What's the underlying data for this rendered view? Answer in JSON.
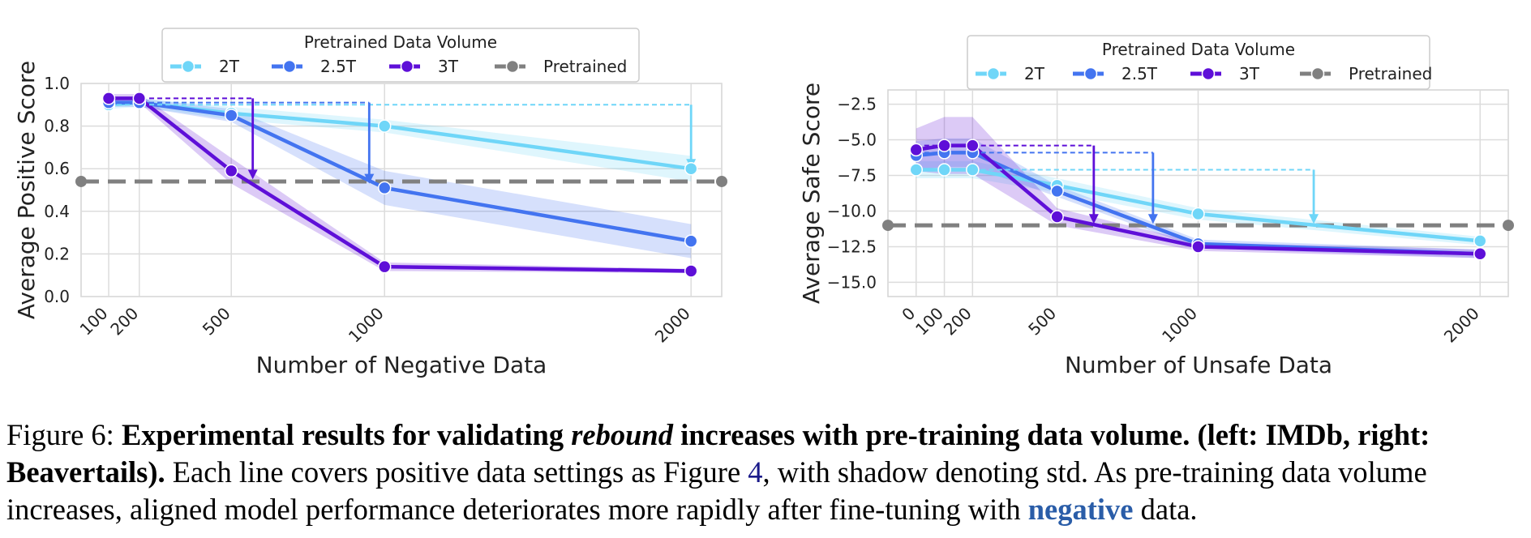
{
  "chart_data": [
    {
      "type": "line",
      "xlabel": "Number of Negative Data",
      "ylabel": "Average Positive Score",
      "x_ticks": [
        100,
        200,
        500,
        1000,
        2000
      ],
      "xlim": [
        10,
        2100
      ],
      "ylim": [
        0.0,
        1.0
      ],
      "y_ticks": [
        "0.0",
        "0.2",
        "0.4",
        "0.6",
        "0.8",
        "1.0"
      ],
      "grid": true,
      "legend": {
        "title": "Pretrained Data Volume",
        "placement": "top-center"
      },
      "series": [
        {
          "name": "2T",
          "color": "#6fd6f8",
          "x": [
            100,
            200,
            500,
            1000,
            2000
          ],
          "y": [
            0.9,
            0.91,
            0.86,
            0.8,
            0.6
          ],
          "std": [
            0.02,
            0.02,
            0.03,
            0.03,
            0.06
          ]
        },
        {
          "name": "2.5T",
          "color": "#4374f0",
          "x": [
            100,
            200,
            500,
            1000,
            2000
          ],
          "y": [
            0.91,
            0.91,
            0.85,
            0.51,
            0.26
          ],
          "std": [
            0.02,
            0.02,
            0.03,
            0.08,
            0.08
          ]
        },
        {
          "name": "3T",
          "color": "#5e0fd8",
          "x": [
            100,
            200,
            500,
            1000,
            2000
          ],
          "y": [
            0.93,
            0.93,
            0.59,
            0.14,
            0.12
          ],
          "std": [
            0.02,
            0.02,
            0.06,
            0.02,
            0.01
          ]
        }
      ],
      "reference": {
        "name": "Pretrained",
        "color": "#808080",
        "y": 0.54
      },
      "annotations": [
        {
          "color": "#6fd6f8",
          "x": 2000,
          "from": 0.9,
          "to": 0.6
        },
        {
          "color": "#4374f0",
          "x": 950,
          "from": 0.91,
          "to": 0.53
        },
        {
          "color": "#5e0fd8",
          "x": 570,
          "from": 0.93,
          "to": 0.55
        }
      ]
    },
    {
      "type": "line",
      "xlabel": "Number of Unsafe Data",
      "ylabel": "Average Safe Score",
      "x_ticks": [
        0,
        100,
        200,
        500,
        1000,
        2000
      ],
      "xlim": [
        -100,
        2100
      ],
      "ylim": [
        -16,
        -1.5
      ],
      "y_ticks": [
        "−2.5",
        "−5.0",
        "−7.5",
        "−10.0",
        "−12.5",
        "−15.0"
      ],
      "y_tick_values": [
        -2.5,
        -5.0,
        -7.5,
        -10.0,
        -12.5,
        -15.0
      ],
      "grid": true,
      "legend": {
        "title": "Pretrained Data Volume",
        "placement": "top-center"
      },
      "series": [
        {
          "name": "2T",
          "color": "#6fd6f8",
          "x": [
            0,
            100,
            200,
            500,
            1000,
            2000
          ],
          "y": [
            -7.1,
            -7.1,
            -7.1,
            -8.2,
            -10.2,
            -12.1
          ],
          "std": [
            0.6,
            0.6,
            0.6,
            0.5,
            0.4,
            0.3
          ]
        },
        {
          "name": "2.5T",
          "color": "#4374f0",
          "x": [
            0,
            100,
            200,
            500,
            1000,
            2000
          ],
          "y": [
            -6.1,
            -5.9,
            -5.9,
            -8.6,
            -12.3,
            -13.0
          ],
          "std": [
            1.0,
            1.0,
            1.0,
            0.4,
            0.3,
            0.3
          ]
        },
        {
          "name": "3T",
          "color": "#5e0fd8",
          "x": [
            0,
            100,
            200,
            500,
            1000,
            2000
          ],
          "y": [
            -5.7,
            -5.4,
            -5.4,
            -10.4,
            -12.5,
            -13.0
          ],
          "std": [
            1.5,
            2.0,
            2.0,
            0.6,
            0.3,
            0.3
          ]
        }
      ],
      "reference": {
        "name": "Pretrained",
        "color": "#808080",
        "y": -11.0
      },
      "annotations": [
        {
          "color": "#6fd6f8",
          "x": 1410,
          "from": -7.1,
          "to": -10.9
        },
        {
          "color": "#4374f0",
          "x": 840,
          "from": -5.9,
          "to": -10.9
        },
        {
          "color": "#5e0fd8",
          "x": 630,
          "from": -5.4,
          "to": -10.9
        }
      ]
    }
  ],
  "caption": {
    "prefix": "Figure 6: ",
    "bold_1": "Experimental results for validating ",
    "bold_italic": "rebound",
    "bold_2": " increases with pre-training data volume. (left: IMDb, right: Beavertails).",
    "text_1": " Each line covers positive data settings as Figure ",
    "ref": "4",
    "text_2": ", with shadow denoting std. As pre-training data volume increases, aligned model performance deteriorates more rapidly after fine-tuning with ",
    "neg_word": "negative",
    "text_3": " data."
  }
}
